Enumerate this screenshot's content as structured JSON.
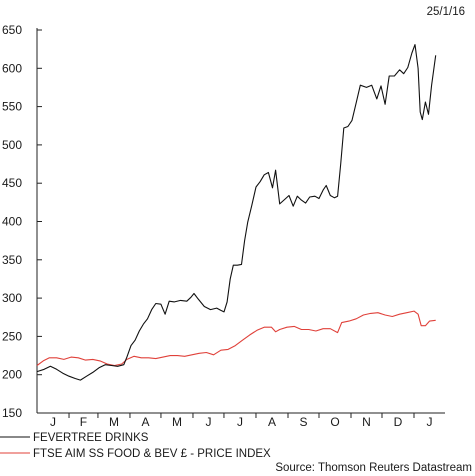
{
  "date_label": "25/1/16",
  "source": "Source: Thomson Reuters Datastream",
  "colors": {
    "fevertree": "#111111",
    "ftse": "#e0413a",
    "axis": "#222222"
  },
  "chart_data": {
    "type": "line",
    "ylim": [
      150,
      650
    ],
    "y_ticks": [
      150,
      200,
      250,
      300,
      350,
      400,
      450,
      500,
      550,
      600,
      650
    ],
    "x_domain": [
      "2015-01-01",
      "2016-01-31"
    ],
    "x_ticks": [
      {
        "label": "J",
        "month_start": "2015-01-01"
      },
      {
        "label": "F",
        "month_start": "2015-02-01"
      },
      {
        "label": "M",
        "month_start": "2015-03-01"
      },
      {
        "label": "A",
        "month_start": "2015-04-01"
      },
      {
        "label": "M",
        "month_start": "2015-05-01"
      },
      {
        "label": "J",
        "month_start": "2015-06-01"
      },
      {
        "label": "J",
        "month_start": "2015-07-01"
      },
      {
        "label": "A",
        "month_start": "2015-08-01"
      },
      {
        "label": "S",
        "month_start": "2015-09-01"
      },
      {
        "label": "O",
        "month_start": "2015-10-01"
      },
      {
        "label": "N",
        "month_start": "2015-11-01"
      },
      {
        "label": "D",
        "month_start": "2015-12-01"
      },
      {
        "label": "J",
        "month_start": "2016-01-01"
      }
    ],
    "legend_position": "bottom-left",
    "series": [
      {
        "name": "FEVERTREE DRINKS",
        "color": "#111111",
        "points": [
          [
            "2015-01-01",
            204
          ],
          [
            "2015-01-08",
            207
          ],
          [
            "2015-01-14",
            211
          ],
          [
            "2015-01-20",
            207
          ],
          [
            "2015-01-26",
            202
          ],
          [
            "2015-02-01",
            198
          ],
          [
            "2015-02-07",
            195
          ],
          [
            "2015-02-12",
            193
          ],
          [
            "2015-02-18",
            198
          ],
          [
            "2015-02-24",
            203
          ],
          [
            "2015-03-02",
            209
          ],
          [
            "2015-03-08",
            213
          ],
          [
            "2015-03-14",
            212
          ],
          [
            "2015-03-20",
            211
          ],
          [
            "2015-03-26",
            213
          ],
          [
            "2015-03-29",
            223
          ],
          [
            "2015-04-02",
            238
          ],
          [
            "2015-04-06",
            245
          ],
          [
            "2015-04-10",
            257
          ],
          [
            "2015-04-14",
            266
          ],
          [
            "2015-04-18",
            273
          ],
          [
            "2015-04-22",
            285
          ],
          [
            "2015-04-26",
            293
          ],
          [
            "2015-05-01",
            292
          ],
          [
            "2015-05-05",
            279
          ],
          [
            "2015-05-09",
            296
          ],
          [
            "2015-05-14",
            295
          ],
          [
            "2015-05-20",
            297
          ],
          [
            "2015-05-26",
            296
          ],
          [
            "2015-05-30",
            301
          ],
          [
            "2015-06-02",
            306
          ],
          [
            "2015-06-06",
            299
          ],
          [
            "2015-06-12",
            289
          ],
          [
            "2015-06-18",
            285
          ],
          [
            "2015-06-24",
            287
          ],
          [
            "2015-06-28",
            284
          ],
          [
            "2015-07-01",
            282
          ],
          [
            "2015-07-04",
            295
          ],
          [
            "2015-07-07",
            325
          ],
          [
            "2015-07-10",
            343
          ],
          [
            "2015-07-14",
            343
          ],
          [
            "2015-07-18",
            344
          ],
          [
            "2015-07-21",
            375
          ],
          [
            "2015-07-24",
            399
          ],
          [
            "2015-07-28",
            421
          ],
          [
            "2015-08-01",
            445
          ],
          [
            "2015-08-05",
            452
          ],
          [
            "2015-08-09",
            461
          ],
          [
            "2015-08-13",
            464
          ],
          [
            "2015-08-17",
            444
          ],
          [
            "2015-08-20",
            467
          ],
          [
            "2015-08-24",
            423
          ],
          [
            "2015-08-28",
            428
          ],
          [
            "2015-09-02",
            434
          ],
          [
            "2015-09-06",
            420
          ],
          [
            "2015-09-10",
            433
          ],
          [
            "2015-09-14",
            428
          ],
          [
            "2015-09-18",
            424
          ],
          [
            "2015-09-22",
            432
          ],
          [
            "2015-09-27",
            433
          ],
          [
            "2015-10-01",
            430
          ],
          [
            "2015-10-05",
            441
          ],
          [
            "2015-10-08",
            447
          ],
          [
            "2015-10-12",
            434
          ],
          [
            "2015-10-16",
            431
          ],
          [
            "2015-10-19",
            433
          ],
          [
            "2015-10-22",
            475
          ],
          [
            "2015-10-25",
            522
          ],
          [
            "2015-10-29",
            524
          ],
          [
            "2015-11-02",
            532
          ],
          [
            "2015-11-06",
            555
          ],
          [
            "2015-11-10",
            578
          ],
          [
            "2015-11-16",
            575
          ],
          [
            "2015-11-21",
            578
          ],
          [
            "2015-11-26",
            560
          ],
          [
            "2015-11-30",
            577
          ],
          [
            "2015-12-04",
            553
          ],
          [
            "2015-12-08",
            590
          ],
          [
            "2015-12-13",
            590
          ],
          [
            "2015-12-18",
            598
          ],
          [
            "2015-12-22",
            593
          ],
          [
            "2015-12-26",
            601
          ],
          [
            "2015-12-30",
            620
          ],
          [
            "2016-01-02",
            631
          ],
          [
            "2016-01-05",
            600
          ],
          [
            "2016-01-07",
            543
          ],
          [
            "2016-01-09",
            533
          ],
          [
            "2016-01-12",
            556
          ],
          [
            "2016-01-15",
            540
          ],
          [
            "2016-01-18",
            578
          ],
          [
            "2016-01-22",
            617
          ]
        ]
      },
      {
        "name": "FTSE AIM SS FOOD & BEV £ - PRICE INDEX",
        "color": "#e0413a",
        "points": [
          [
            "2015-01-01",
            212
          ],
          [
            "2015-01-07",
            218
          ],
          [
            "2015-01-13",
            222
          ],
          [
            "2015-01-20",
            222
          ],
          [
            "2015-01-27",
            220
          ],
          [
            "2015-02-03",
            223
          ],
          [
            "2015-02-10",
            222
          ],
          [
            "2015-02-17",
            219
          ],
          [
            "2015-02-24",
            220
          ],
          [
            "2015-03-03",
            218
          ],
          [
            "2015-03-10",
            214
          ],
          [
            "2015-03-17",
            212
          ],
          [
            "2015-03-24",
            214
          ],
          [
            "2015-03-29",
            220
          ],
          [
            "2015-04-05",
            224
          ],
          [
            "2015-04-12",
            222
          ],
          [
            "2015-04-19",
            222
          ],
          [
            "2015-04-26",
            221
          ],
          [
            "2015-05-03",
            223
          ],
          [
            "2015-05-10",
            225
          ],
          [
            "2015-05-17",
            225
          ],
          [
            "2015-05-24",
            224
          ],
          [
            "2015-05-31",
            226
          ],
          [
            "2015-06-07",
            228
          ],
          [
            "2015-06-14",
            229
          ],
          [
            "2015-06-21",
            226
          ],
          [
            "2015-06-28",
            232
          ],
          [
            "2015-07-05",
            233
          ],
          [
            "2015-07-12",
            238
          ],
          [
            "2015-07-19",
            245
          ],
          [
            "2015-07-26",
            252
          ],
          [
            "2015-08-02",
            258
          ],
          [
            "2015-08-09",
            262
          ],
          [
            "2015-08-16",
            262
          ],
          [
            "2015-08-20",
            256
          ],
          [
            "2015-08-24",
            259
          ],
          [
            "2015-08-31",
            262
          ],
          [
            "2015-09-07",
            263
          ],
          [
            "2015-09-14",
            259
          ],
          [
            "2015-09-21",
            259
          ],
          [
            "2015-09-28",
            257
          ],
          [
            "2015-10-05",
            260
          ],
          [
            "2015-10-12",
            260
          ],
          [
            "2015-10-19",
            255
          ],
          [
            "2015-10-23",
            268
          ],
          [
            "2015-10-30",
            270
          ],
          [
            "2015-11-06",
            273
          ],
          [
            "2015-11-13",
            278
          ],
          [
            "2015-11-20",
            280
          ],
          [
            "2015-11-27",
            281
          ],
          [
            "2015-12-04",
            278
          ],
          [
            "2015-12-11",
            276
          ],
          [
            "2015-12-18",
            279
          ],
          [
            "2015-12-25",
            281
          ],
          [
            "2016-01-01",
            283
          ],
          [
            "2016-01-05",
            279
          ],
          [
            "2016-01-08",
            264
          ],
          [
            "2016-01-12",
            264
          ],
          [
            "2016-01-16",
            270
          ],
          [
            "2016-01-22",
            271
          ]
        ]
      }
    ]
  }
}
